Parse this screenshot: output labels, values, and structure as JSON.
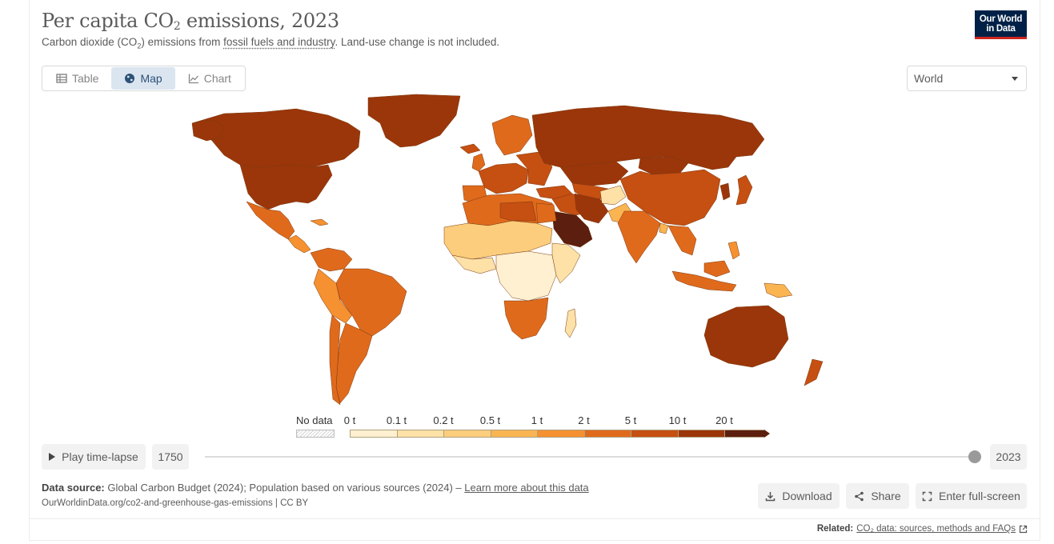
{
  "header": {
    "title_prefix": "Per capita CO",
    "title_sub": "2",
    "title_suffix": " emissions, 2023",
    "subtitle_prefix": "Carbon dioxide (CO",
    "subtitle_sub": "2",
    "subtitle_mid": ") emissions from ",
    "subtitle_link": "fossil fuels and industry",
    "subtitle_suffix": ". Land-use change is not included.",
    "logo_line1": "Our World",
    "logo_line2": "in Data"
  },
  "tabs": [
    {
      "label": "Table",
      "icon": "table-icon",
      "active": false
    },
    {
      "label": "Map",
      "icon": "globe-icon",
      "active": true
    },
    {
      "label": "Chart",
      "icon": "line-chart-icon",
      "active": false
    }
  ],
  "region_select": {
    "value": "World"
  },
  "legend": {
    "no_data_label": "No data",
    "ticks": [
      "0 t",
      "0.1 t",
      "0.2 t",
      "0.5 t",
      "1 t",
      "2 t",
      "5 t",
      "10 t",
      "20 t"
    ],
    "colors": [
      "#fef0d0",
      "#fde1a6",
      "#fccd7c",
      "#fab552",
      "#f59130",
      "#e06a1c",
      "#c64f12",
      "#9b360a",
      "#5c1e0e"
    ]
  },
  "timeline": {
    "play_label": "Play time-lapse",
    "start_year": "1750",
    "end_year": "2023",
    "current_year_fraction": 1.0
  },
  "footer": {
    "source_label": "Data source:",
    "source_text": " Global Carbon Budget (2024); Population based on various sources (2024) – ",
    "learn_more": "Learn more about this data",
    "url_line": "OurWorldinData.org/co2-and-greenhouse-gas-emissions | CC BY",
    "download_label": "Download",
    "share_label": "Share",
    "fullscreen_label": "Enter full-screen",
    "related_label": "Related:",
    "related_link": "CO₂ data: sources, methods and FAQs"
  }
}
